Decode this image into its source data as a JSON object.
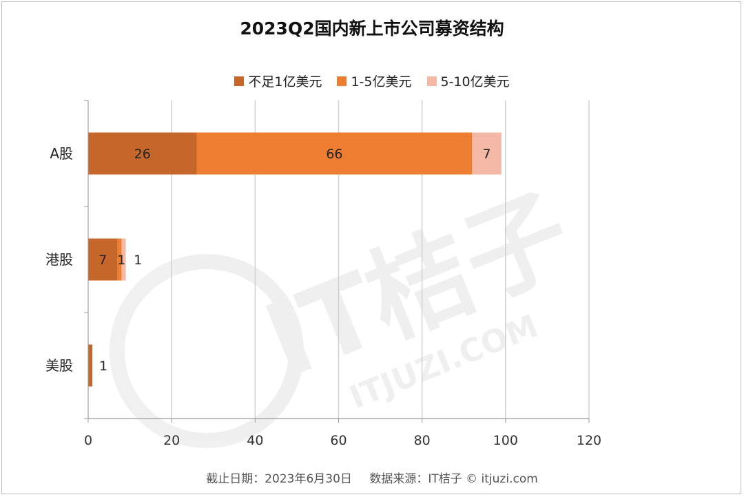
{
  "chart_data": {
    "type": "bar",
    "orientation": "horizontal",
    "stacked": true,
    "title": "2023Q2国内新上市公司募资结构",
    "categories": [
      "A股",
      "港股",
      "美股"
    ],
    "series": [
      {
        "name": "不足1亿美元",
        "color": "#C5672A",
        "values": [
          26,
          7,
          1
        ]
      },
      {
        "name": "1-5亿美元",
        "color": "#ED7D31",
        "values": [
          66,
          1,
          0
        ]
      },
      {
        "name": "5-10亿美元",
        "color": "#F4B9A6",
        "values": [
          7,
          1,
          0
        ]
      }
    ],
    "xlim": [
      0,
      120
    ],
    "xticks": [
      0,
      20,
      40,
      60,
      80,
      100,
      120
    ],
    "grid": true,
    "legend_position": "top"
  },
  "watermark": {
    "brand": "IT桔子",
    "site": "ITJUZI.COM"
  },
  "footer": {
    "date_note": "截止日期：2023年6月30日",
    "source_note": "数据来源：IT桔子 © itjuzi.com"
  }
}
